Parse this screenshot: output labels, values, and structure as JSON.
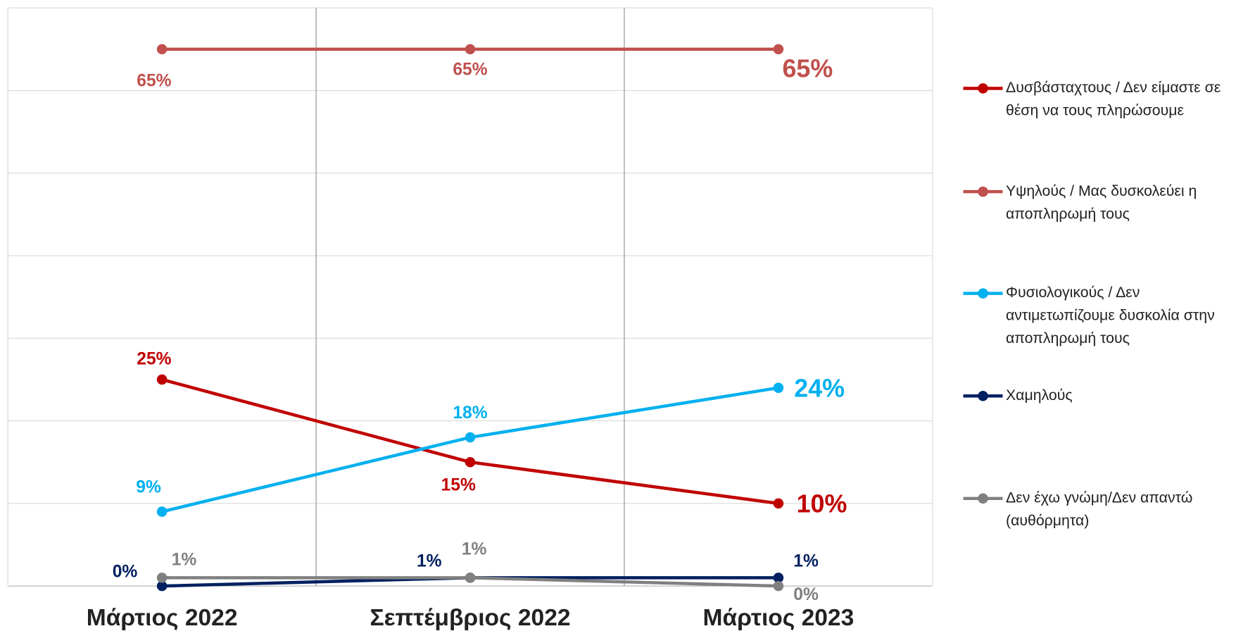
{
  "chart_data": {
    "type": "line",
    "categories": [
      "Μάρτιος 2022",
      "Σεπτέμβριος 2022",
      "Μάρτιος 2023"
    ],
    "series": [
      {
        "name": "Δυσβάσταχτους / Δεν είμαστε σε θέση να τους πληρώσουμε",
        "color": "#c00000",
        "values": [
          25,
          15,
          10
        ],
        "value_labels": [
          "25%",
          "15%",
          "10%"
        ]
      },
      {
        "name": "Υψηλούς / Μας δυσκολεύει η αποπληρωμή τους",
        "color": "#c0504d",
        "values": [
          65,
          65,
          65
        ],
        "value_labels": [
          "65%",
          "65%",
          "65%"
        ]
      },
      {
        "name": "Φυσιολογικούς / Δεν αντιμετωπίζουμε δυσκολία στην αποπληρωμή τους",
        "color": "#00b0f0",
        "values": [
          9,
          18,
          24
        ],
        "value_labels": [
          "9%",
          "18%",
          "24%"
        ]
      },
      {
        "name": "Χαμηλούς",
        "color": "#002060",
        "values": [
          0,
          1,
          1
        ],
        "value_labels": [
          "0%",
          "1%",
          "1%"
        ]
      },
      {
        "name": "Δεν έχω γνώμη/Δεν απαντώ (αυθόρμητα)",
        "color": "#808080",
        "values": [
          1,
          1,
          0
        ],
        "value_labels": [
          "1%",
          "1%",
          "0%"
        ]
      }
    ],
    "ylim": [
      0,
      70
    ],
    "yticks": [
      0,
      10,
      20,
      30,
      40,
      50,
      60,
      70
    ],
    "grid": true,
    "legend": "right"
  }
}
